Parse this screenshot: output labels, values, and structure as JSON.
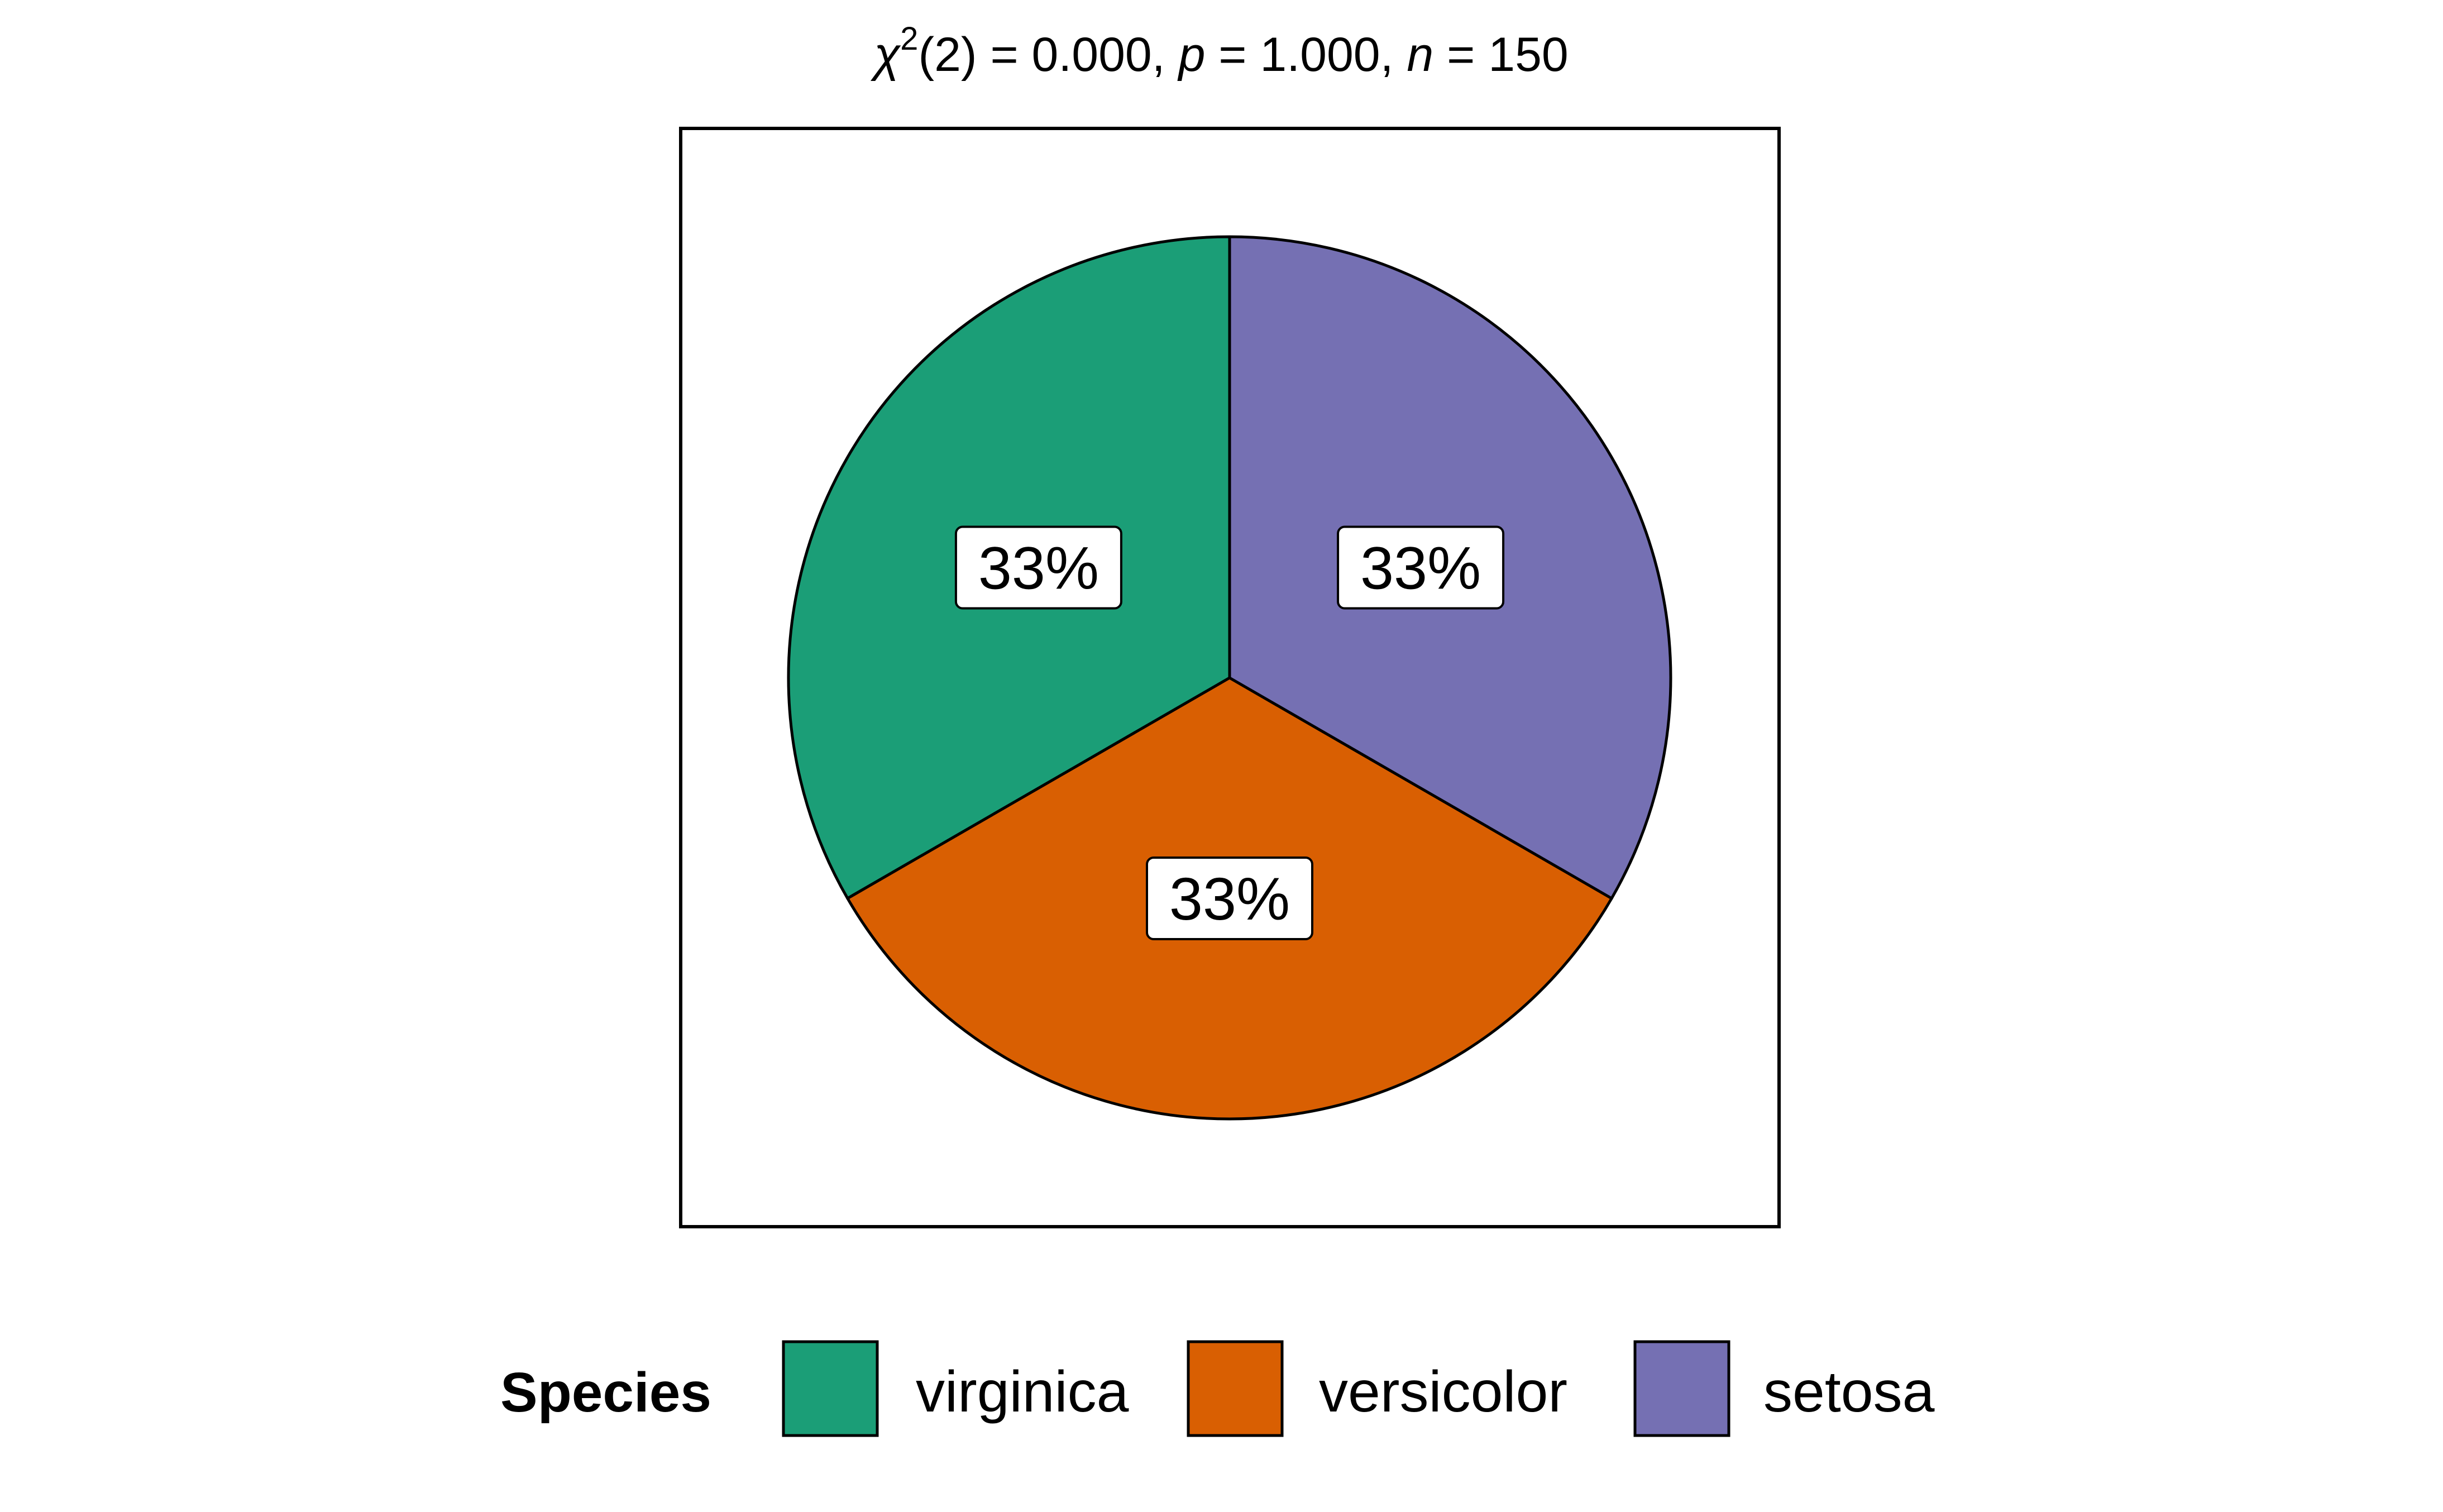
{
  "chart_data": {
    "type": "pie",
    "subtitle": {
      "chi_symbol": "χ",
      "chi_superscript": "2",
      "df_part": "(2) = 0.000, ",
      "p_label": "p",
      "p_value": " = 1.000, ",
      "n_label": "n",
      "n_value": " = 150"
    },
    "slices": [
      {
        "label": "virginica",
        "value": 33.33,
        "display": "33%",
        "color": "#1B9E77"
      },
      {
        "label": "versicolor",
        "value": 33.33,
        "display": "33%",
        "color": "#D95F02"
      },
      {
        "label": "setosa",
        "value": 33.33,
        "display": "33%",
        "color": "#7570B3"
      }
    ],
    "legend": {
      "title": "Species",
      "position": "bottom"
    }
  }
}
